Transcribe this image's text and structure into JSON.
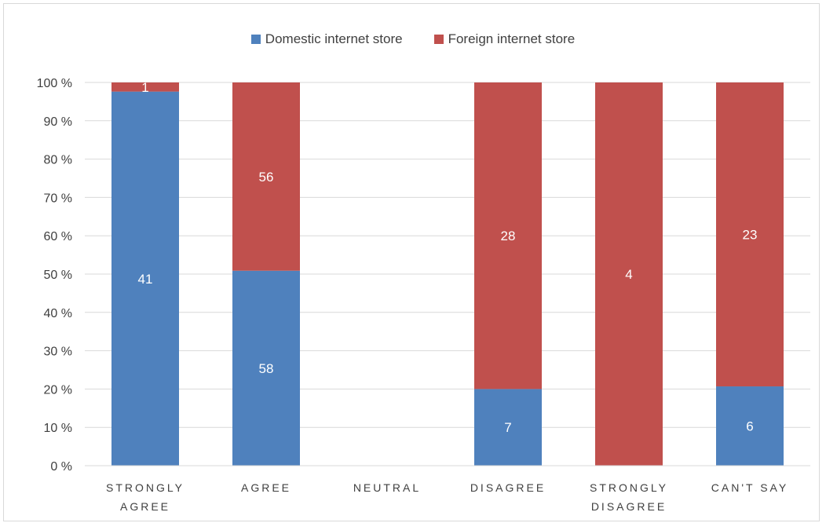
{
  "chart_data": {
    "type": "bar",
    "stacked": true,
    "normalized": "percent",
    "categories": [
      "STRONGLY AGREE",
      "AGREE",
      "NEUTRAL",
      "DISAGREE",
      "STRONGLY DISAGREE",
      "CAN'T SAY"
    ],
    "series": [
      {
        "name": "Domestic internet store",
        "color": "#4f81bd",
        "values": [
          41,
          58,
          0,
          7,
          0,
          6
        ]
      },
      {
        "name": "Foreign internet store",
        "color": "#c0504d",
        "values": [
          1,
          56,
          0,
          28,
          4,
          23
        ]
      }
    ],
    "y_ticks": [
      "0 %",
      "10 %",
      "20 %",
      "30 %",
      "40 %",
      "50 %",
      "60 %",
      "70 %",
      "80 %",
      "90 %",
      "100 %"
    ],
    "ylim": [
      0,
      100
    ],
    "grid": true,
    "legend_position": "top",
    "title": "",
    "xlabel": "",
    "ylabel": ""
  }
}
